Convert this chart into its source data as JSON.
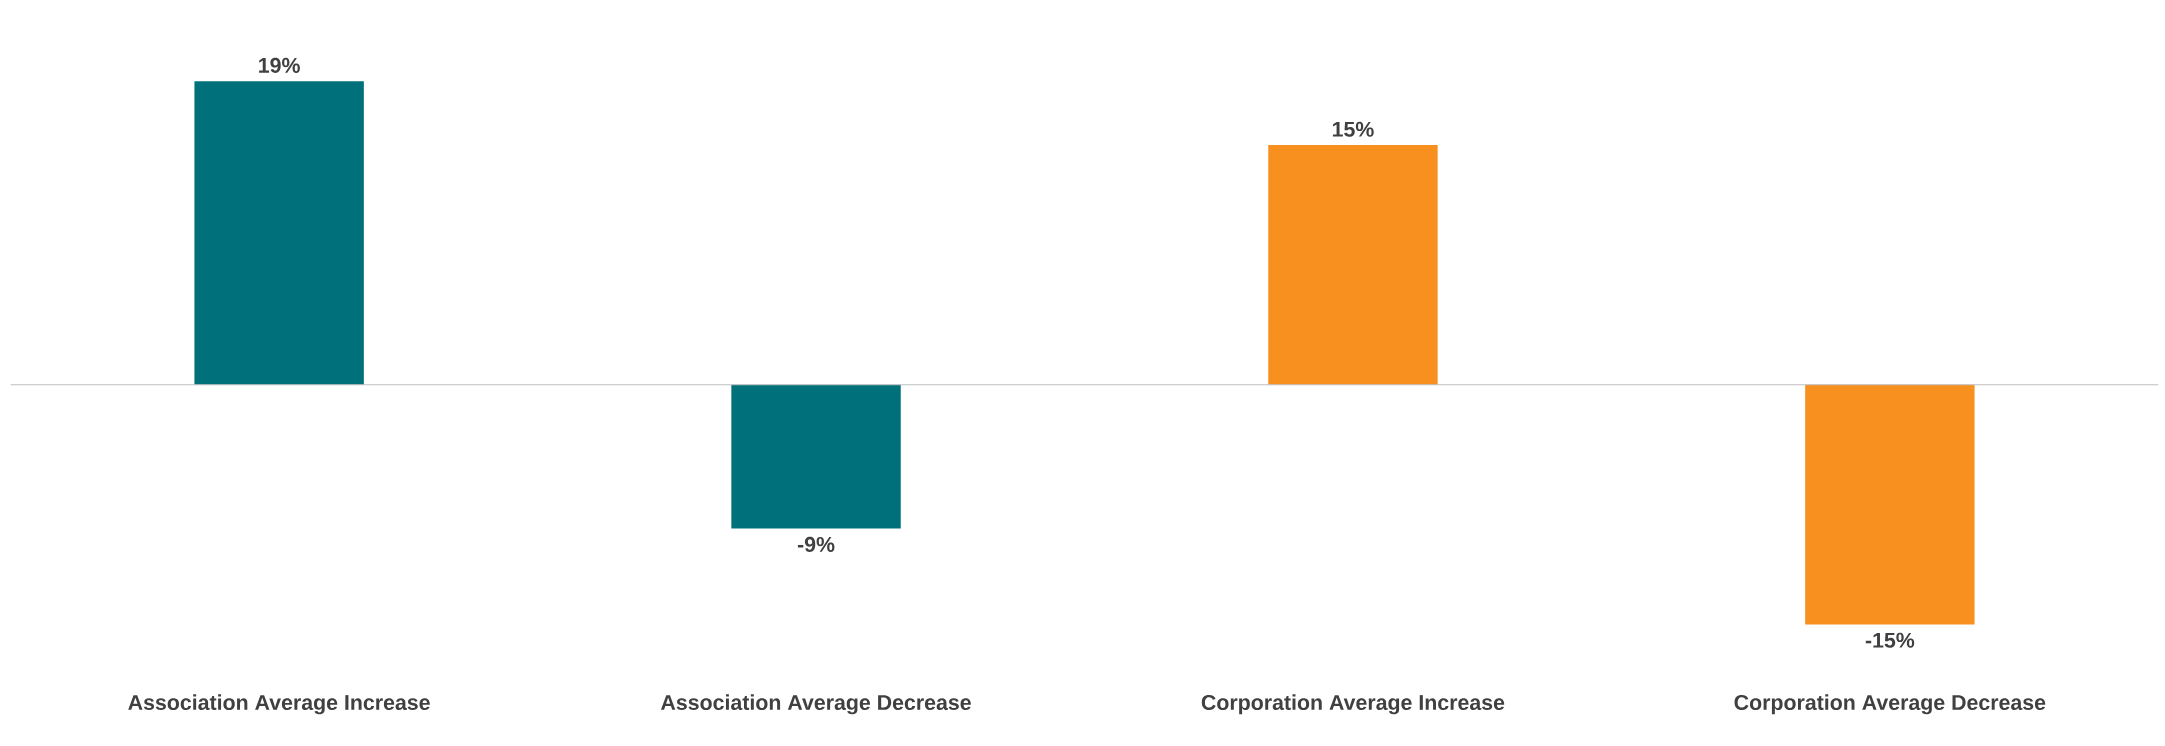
{
  "chart_data": {
    "type": "bar",
    "categories": [
      "Association Average Increase",
      "Association Average Decrease",
      "Corporation Average Increase",
      "Corporation Average Decrease"
    ],
    "values": [
      19,
      -9,
      15,
      -15
    ],
    "colors": [
      "#00707b",
      "#00707b",
      "#f7901e",
      "#f7901e"
    ],
    "value_labels": [
      "19%",
      "-9%",
      "15%",
      "-15%"
    ]
  }
}
